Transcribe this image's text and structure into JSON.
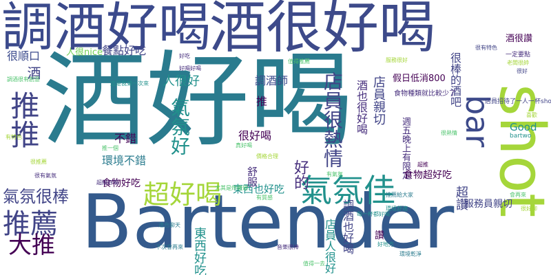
{
  "cloud": {
    "palette": {
      "navy": "#3b4a8c",
      "indigo": "#3d4a8a",
      "teal": "#2a7b8e",
      "blue": "#345a8c",
      "green": "#4cc36c",
      "lime": "#a5d63a",
      "light_green": "#73d055",
      "purple": "#472f7d",
      "dark": "#440154",
      "cyan": "#21918c",
      "slate": "#414487"
    },
    "words": [
      {
        "text": "酒好喝",
        "color": "teal"
      },
      {
        "text": "Bartender",
        "color": "blue"
      },
      {
        "text": "酒很好喝",
        "color": "indigo"
      },
      {
        "text": "調酒好喝",
        "color": "navy"
      },
      {
        "text": "shot",
        "color": "lime"
      },
      {
        "text": "推推",
        "color": "slate"
      },
      {
        "text": "bar",
        "color": "indigo"
      },
      {
        "text": "氣氛佳",
        "color": "cyan"
      },
      {
        "text": "推薦",
        "color": "slate"
      },
      {
        "text": "超好喝",
        "color": "lime"
      },
      {
        "text": "店員很熱情",
        "color": "slate"
      },
      {
        "text": "氣氛很棒",
        "color": "slate"
      },
      {
        "text": "大推",
        "color": "dark"
      },
      {
        "text": "氣氛好",
        "color": "cyan"
      },
      {
        "text": "好的",
        "color": "purple"
      },
      {
        "text": "很順口",
        "color": "navy"
      },
      {
        "text": "人很nice",
        "color": "light_green"
      },
      {
        "text": "餐點好吃",
        "color": "slate"
      },
      {
        "text": "酒",
        "color": "slate"
      },
      {
        "text": "人很好",
        "color": "cyan"
      },
      {
        "text": "調酒師",
        "color": "navy"
      },
      {
        "text": "推",
        "color": "dark"
      },
      {
        "text": "很好喝",
        "color": "dark"
      },
      {
        "text": "不錯",
        "color": "dark"
      },
      {
        "text": "環境不錯",
        "color": "teal"
      },
      {
        "text": "食物好吃",
        "color": "dark"
      },
      {
        "text": "東西也好吃",
        "color": "cyan"
      },
      {
        "text": "舒服",
        "color": "purple"
      },
      {
        "text": "酒也很好喝",
        "color": "purple"
      },
      {
        "text": "店員親切",
        "color": "slate"
      },
      {
        "text": "假日低消800",
        "color": "dark"
      },
      {
        "text": "很棒的酒吧",
        "color": "slate"
      },
      {
        "text": "週五晚上有限定",
        "color": "purple"
      },
      {
        "text": "超讚",
        "color": "slate"
      },
      {
        "text": "食物超好吃",
        "color": "dark"
      },
      {
        "text": "Good",
        "color": "cyan"
      },
      {
        "text": "店員人很好",
        "color": "cyan"
      },
      {
        "text": "調酒也好喝",
        "color": "slate"
      },
      {
        "text": "東西好吃",
        "color": "cyan"
      },
      {
        "text": "讚",
        "color": "dark"
      },
      {
        "text": "服務員親切",
        "color": "slate"
      },
      {
        "text": "酒很讚",
        "color": "dark"
      },
      {
        "text": "一定要點",
        "color": "purple"
      },
      {
        "text": "食物種類就比較少了",
        "color": "purple"
      },
      {
        "text": "店員招待了一人一杯shot",
        "color": "slate"
      },
      {
        "text": "bartwo",
        "color": "cyan"
      },
      {
        "text": "尤其是炸雞翅",
        "color": "green"
      },
      {
        "text": "這是我第一次來",
        "color": "cyan"
      },
      {
        "text": "真好喝",
        "color": "green"
      },
      {
        "text": "好吃",
        "color": "purple"
      },
      {
        "text": "價格合理",
        "color": "lime"
      },
      {
        "text": "值得推薦",
        "color": "green"
      },
      {
        "text": "服務很好",
        "color": "lime"
      },
      {
        "text": "有氣氛",
        "color": "green"
      },
      {
        "text": "很有特色",
        "color": "slate"
      },
      {
        "text": "很好",
        "color": "slate"
      },
      {
        "text": "環境舒適",
        "color": "cyan"
      },
      {
        "text": "每一杯都好喝",
        "color": "cyan"
      },
      {
        "text": "調酒很有創意",
        "color": "green"
      },
      {
        "text": "推薦給大家",
        "color": "teal"
      },
      {
        "text": "老闆很帥",
        "color": "lime"
      },
      {
        "text": "很好聊",
        "color": "lime"
      },
      {
        "text": "會再來",
        "color": "green"
      },
      {
        "text": "超級好喝",
        "color": "purple"
      },
      {
        "text": "下次會再來",
        "color": "teal"
      },
      {
        "text": "音樂很棒",
        "color": "purple"
      },
      {
        "text": "適合聊天",
        "color": "teal"
      },
      {
        "text": "值得一去",
        "color": "green"
      },
      {
        "text": "好地方",
        "color": "cyan"
      },
      {
        "text": "環境乾淨",
        "color": "teal"
      },
      {
        "text": "很推薦",
        "color": "lime"
      },
      {
        "text": "有特色",
        "color": "lime"
      },
      {
        "text": "很有氣氛",
        "color": "purple"
      },
      {
        "text": "推一個",
        "color": "green"
      },
      {
        "text": "很熱情",
        "color": "green"
      },
      {
        "text": "喜歡",
        "color": "lime"
      },
      {
        "text": "好喝好喝",
        "color": "purple"
      },
      {
        "text": "超推",
        "color": "dark"
      },
      {
        "text": "有質感",
        "color": "green"
      }
    ]
  }
}
